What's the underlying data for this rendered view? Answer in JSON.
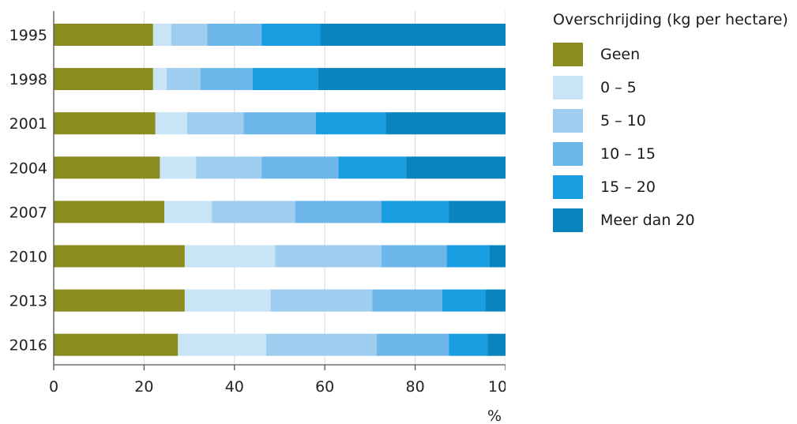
{
  "chart_data": {
    "type": "bar",
    "orientation": "horizontal",
    "stacked": true,
    "categories": [
      "1995",
      "1998",
      "2001",
      "2004",
      "2007",
      "2010",
      "2013",
      "2016"
    ],
    "series": [
      {
        "name": "Geen",
        "color": "#8b8c1f",
        "values": [
          22,
          22,
          22.5,
          23.5,
          24.5,
          29,
          29,
          27.5
        ]
      },
      {
        "name": "0 – 5",
        "color": "#c9e3f7",
        "values": [
          4,
          3,
          7,
          8,
          10.5,
          20,
          19,
          19.5
        ]
      },
      {
        "name": "5 – 10",
        "color": "#9fcdf0",
        "values": [
          8,
          7.5,
          12.5,
          14.5,
          18.5,
          23.5,
          22.5,
          24.5
        ]
      },
      {
        "name": "10 – 15",
        "color": "#6cb6ea",
        "values": [
          12,
          11.5,
          16,
          17,
          19,
          14.5,
          15.5,
          16
        ]
      },
      {
        "name": "15 – 20",
        "color": "#1a9ee2",
        "values": [
          13,
          14.5,
          15.5,
          15,
          15,
          9.5,
          9.5,
          8.5
        ]
      },
      {
        "name": "Meer dan 20",
        "color": "#0a84bd",
        "values": [
          41,
          41.5,
          26.5,
          22,
          12.5,
          3.5,
          4.5,
          4
        ]
      }
    ],
    "xlim": [
      0,
      100
    ],
    "xticks": [
      "0",
      "20",
      "40",
      "60",
      "80",
      "100"
    ],
    "xlabel": "%",
    "legend_title": "Overschrijding (kg per hectare)",
    "legend_position": "right",
    "grid": "vertical"
  }
}
